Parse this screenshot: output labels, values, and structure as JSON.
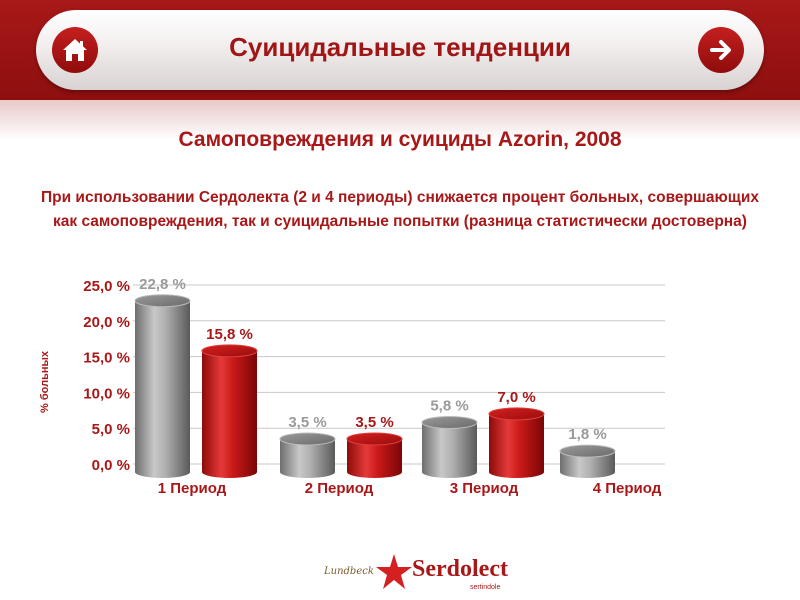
{
  "header": {
    "title": "Суицидальные тенденции"
  },
  "subtitle": "Самоповреждения и суициды Azorin, 2008",
  "description": "При использовании Сердолекта (2 и 4 периоды) снижается процент больных, совершающих как самоповреждения, так и суицидальные попытки (разница статистически достоверна)",
  "colors": {
    "brand": "#a81818",
    "gray": "#9a9a9a",
    "red": "#c81414"
  },
  "chart_data": {
    "type": "bar",
    "title": "",
    "xlabel": "",
    "ylabel": "% больных",
    "ylim": [
      0,
      25
    ],
    "yticks": [
      0,
      5,
      10,
      15,
      20,
      25
    ],
    "ytick_labels": [
      "0,0 %",
      "5,0 %",
      "10,0 %",
      "15,0 %",
      "20,0 %",
      "25,0 %"
    ],
    "categories": [
      "1 Период",
      "2 Период",
      "3 Период",
      "4 Период"
    ],
    "bars": [
      {
        "category": "1 Период",
        "color": "gray",
        "value": 22.8,
        "label": "22,8 %"
      },
      {
        "category": "1 Период",
        "color": "red",
        "value": 15.8,
        "label": "15,8 %"
      },
      {
        "category": "2 Период",
        "color": "gray",
        "value": 3.5,
        "label": "3,5 %"
      },
      {
        "category": "2 Период",
        "color": "red",
        "value": 3.5,
        "label": "3,5 %"
      },
      {
        "category": "3 Период",
        "color": "gray",
        "value": 5.8,
        "label": "5,8 %"
      },
      {
        "category": "3 Период",
        "color": "red",
        "value": 7.0,
        "label": "7,0 %"
      },
      {
        "category": "4 Период",
        "color": "gray",
        "value": 1.8,
        "label": "1,8 %"
      }
    ],
    "grid": true
  },
  "footer": {
    "lundbeck": "Lundbeck",
    "brand": "Serdolect",
    "brand_sub": "sertindole"
  }
}
